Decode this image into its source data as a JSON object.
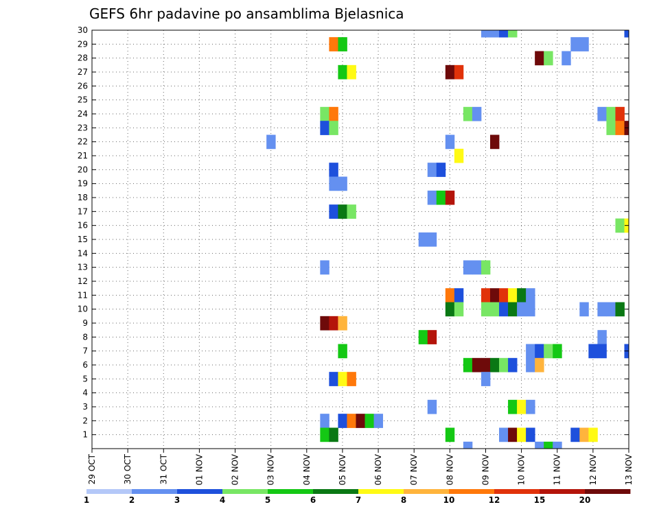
{
  "chart_data": {
    "type": "heatmap",
    "title": "GEFS 6hr padavine po ansamblima Bjelasnica",
    "xlabel": "",
    "ylabel": "",
    "x_tick_labels": [
      "29 OCT",
      "30 OCT",
      "31 OCT",
      "01 NOV",
      "02 NOV",
      "03 NOV",
      "04 NOV",
      "05 NOV",
      "06 NOV",
      "07 NOV",
      "08 NOV",
      "09 NOV",
      "10 NOV",
      "11 NOV",
      "12 NOV",
      "13 NOV"
    ],
    "x_range_days": [
      0,
      15
    ],
    "y_tick_labels": [
      "1",
      "2",
      "3",
      "4",
      "5",
      "6",
      "7",
      "8",
      "9",
      "10",
      "11",
      "12",
      "13",
      "14",
      "15",
      "16",
      "17",
      "18",
      "19",
      "20",
      "21",
      "22",
      "23",
      "24",
      "25",
      "26",
      "27",
      "28",
      "29",
      "30"
    ],
    "y_range": [
      0,
      30
    ],
    "grid": true,
    "colorbar": {
      "labels": [
        "1",
        "2",
        "3",
        "4",
        "5",
        "6",
        "7",
        "8",
        "10",
        "12",
        "15",
        "20"
      ],
      "colors": [
        "#b4c8f8",
        "#6490f0",
        "#1e50dc",
        "#78e664",
        "#14c814",
        "#0a7814",
        "#fffa14",
        "#ffb43c",
        "#ff780a",
        "#e1320a",
        "#b4140a",
        "#6e0a0a"
      ]
    },
    "cells": [
      [
        30,
        11.0,
        2
      ],
      [
        30,
        11.25,
        2
      ],
      [
        30,
        11.5,
        3
      ],
      [
        30,
        11.75,
        4
      ],
      [
        30,
        15.0,
        3
      ],
      [
        29,
        6.75,
        9
      ],
      [
        29,
        7.0,
        5
      ],
      [
        29,
        13.5,
        2
      ],
      [
        29,
        13.75,
        2
      ],
      [
        28,
        12.5,
        12
      ],
      [
        28,
        12.75,
        4
      ],
      [
        28,
        13.25,
        2
      ],
      [
        27,
        7.0,
        5
      ],
      [
        27,
        7.25,
        7
      ],
      [
        27,
        10.0,
        12
      ],
      [
        27,
        10.25,
        10
      ],
      [
        24,
        6.5,
        4
      ],
      [
        24,
        6.75,
        9
      ],
      [
        24,
        10.5,
        4
      ],
      [
        24,
        10.75,
        2
      ],
      [
        24,
        14.25,
        2
      ],
      [
        24,
        14.5,
        4
      ],
      [
        24,
        14.75,
        10
      ],
      [
        23,
        6.5,
        3
      ],
      [
        23,
        6.75,
        4
      ],
      [
        23,
        14.5,
        4
      ],
      [
        23,
        14.75,
        9
      ],
      [
        23,
        15.0,
        12
      ],
      [
        22,
        5.0,
        2
      ],
      [
        22,
        10.0,
        2
      ],
      [
        22,
        11.25,
        12
      ],
      [
        21,
        10.25,
        7
      ],
      [
        20,
        6.75,
        3
      ],
      [
        20,
        9.5,
        2
      ],
      [
        20,
        9.75,
        3
      ],
      [
        19,
        6.75,
        2
      ],
      [
        19,
        7.0,
        2
      ],
      [
        18,
        9.5,
        2
      ],
      [
        18,
        9.75,
        5
      ],
      [
        18,
        10.0,
        11
      ],
      [
        17,
        6.75,
        3
      ],
      [
        17,
        7.0,
        6
      ],
      [
        17,
        7.25,
        4
      ],
      [
        16,
        14.75,
        4
      ],
      [
        16,
        15.0,
        7
      ],
      [
        15,
        9.25,
        2
      ],
      [
        15,
        9.5,
        2
      ],
      [
        13,
        6.5,
        2
      ],
      [
        13,
        10.5,
        2
      ],
      [
        13,
        10.75,
        2
      ],
      [
        13,
        11.0,
        4
      ],
      [
        11,
        10.0,
        9
      ],
      [
        11,
        10.25,
        3
      ],
      [
        11,
        11.0,
        10
      ],
      [
        11,
        11.25,
        12
      ],
      [
        11,
        11.5,
        10
      ],
      [
        11,
        11.75,
        7
      ],
      [
        11,
        12.0,
        6
      ],
      [
        11,
        12.25,
        2
      ],
      [
        10,
        10.0,
        6
      ],
      [
        10,
        10.25,
        4
      ],
      [
        10,
        11.0,
        4
      ],
      [
        10,
        11.25,
        4
      ],
      [
        10,
        11.5,
        3
      ],
      [
        10,
        11.75,
        6
      ],
      [
        10,
        12.0,
        2
      ],
      [
        10,
        12.25,
        2
      ],
      [
        10,
        13.75,
        2
      ],
      [
        10,
        14.25,
        2
      ],
      [
        10,
        14.5,
        2
      ],
      [
        10,
        14.75,
        6
      ],
      [
        9,
        6.5,
        12
      ],
      [
        9,
        6.75,
        11
      ],
      [
        9,
        7.0,
        8
      ],
      [
        8,
        9.25,
        5
      ],
      [
        8,
        9.5,
        11
      ],
      [
        8,
        14.25,
        2
      ],
      [
        7,
        7.0,
        5
      ],
      [
        7,
        12.25,
        2
      ],
      [
        7,
        12.5,
        3
      ],
      [
        7,
        12.75,
        4
      ],
      [
        7,
        13.0,
        5
      ],
      [
        7,
        14.0,
        3
      ],
      [
        7,
        14.25,
        3
      ],
      [
        7,
        15.0,
        3
      ],
      [
        6,
        10.5,
        5
      ],
      [
        6,
        10.75,
        12
      ],
      [
        6,
        11.0,
        12
      ],
      [
        6,
        11.25,
        6
      ],
      [
        6,
        11.5,
        4
      ],
      [
        6,
        11.75,
        3
      ],
      [
        6,
        12.25,
        2
      ],
      [
        6,
        12.5,
        8
      ],
      [
        5,
        6.75,
        3
      ],
      [
        5,
        7.0,
        7
      ],
      [
        5,
        7.25,
        9
      ],
      [
        5,
        11.0,
        2
      ],
      [
        3,
        9.5,
        2
      ],
      [
        3,
        11.75,
        5
      ],
      [
        3,
        12.0,
        7
      ],
      [
        3,
        12.25,
        2
      ],
      [
        2,
        6.5,
        2
      ],
      [
        2,
        7.0,
        3
      ],
      [
        2,
        7.25,
        9
      ],
      [
        2,
        7.5,
        12
      ],
      [
        2,
        7.75,
        5
      ],
      [
        2,
        8.0,
        2
      ],
      [
        1,
        6.5,
        5
      ],
      [
        1,
        6.75,
        6
      ],
      [
        1,
        10.0,
        5
      ],
      [
        1,
        11.5,
        2
      ],
      [
        1,
        11.75,
        12
      ],
      [
        1,
        12.0,
        7
      ],
      [
        1,
        12.25,
        3
      ],
      [
        1,
        13.5,
        3
      ],
      [
        1,
        13.75,
        8
      ],
      [
        1,
        14.0,
        7
      ],
      [
        0,
        10.5,
        2
      ],
      [
        0,
        12.5,
        2
      ],
      [
        0,
        12.75,
        5
      ],
      [
        0,
        13.0,
        2
      ]
    ]
  }
}
